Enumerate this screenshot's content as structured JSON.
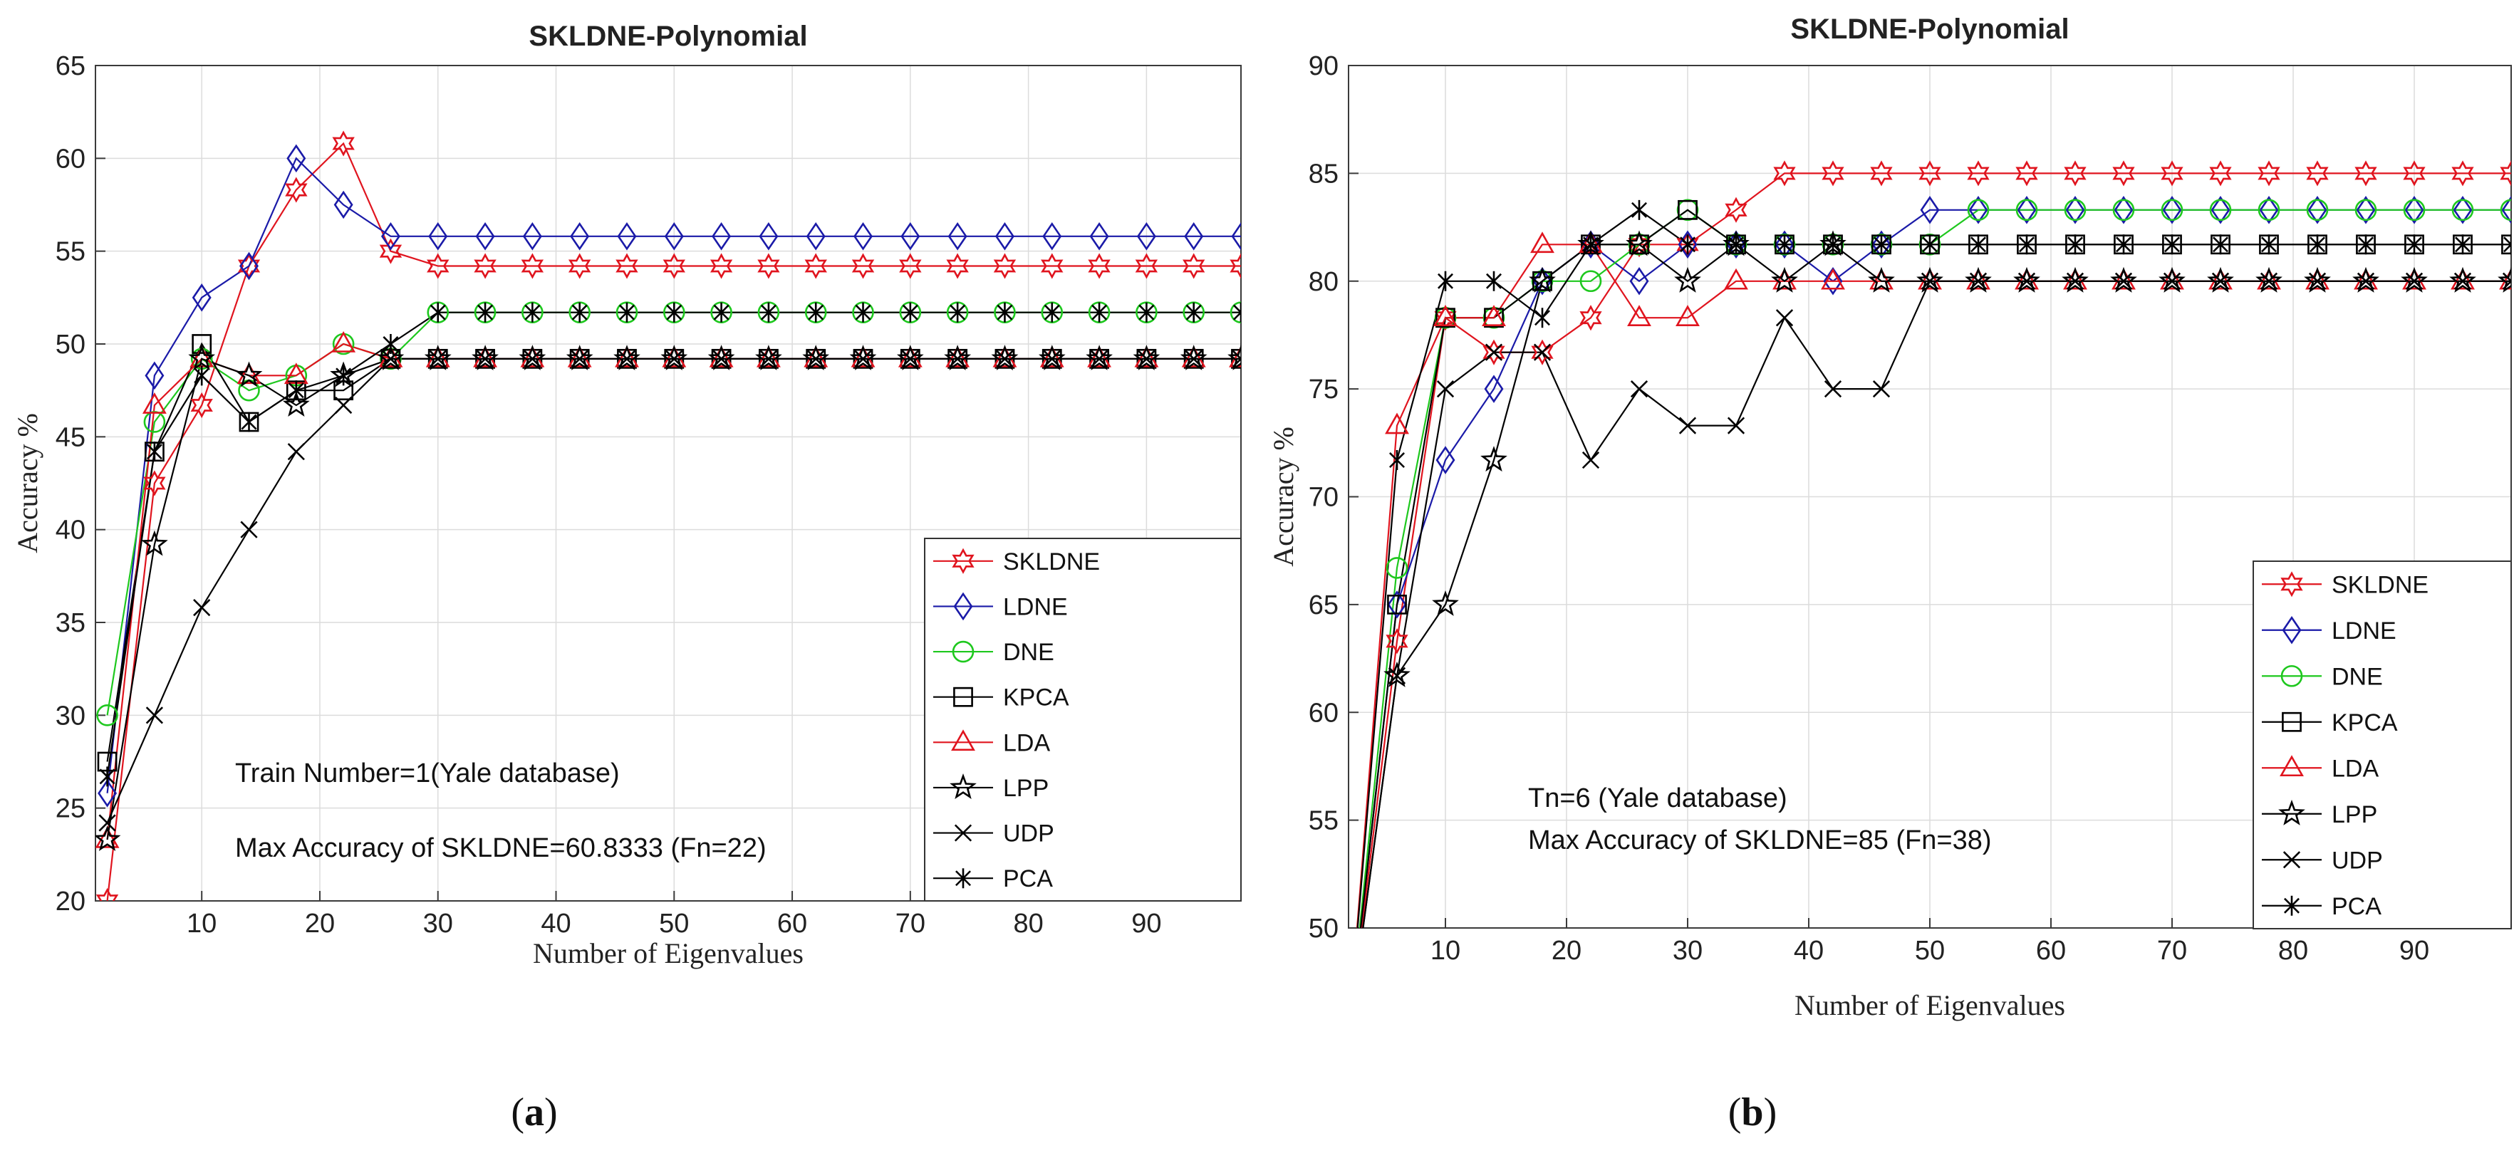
{
  "chart_data": [
    {
      "type": "line",
      "panel_label": "a",
      "title": "SKLDNE-Polynomial",
      "xlabel": "Number of Eigenvalues",
      "ylabel": "Accuracy %",
      "xlim": [
        1,
        98
      ],
      "ylim": [
        20,
        65
      ],
      "xticks": [
        10,
        20,
        30,
        40,
        50,
        60,
        70,
        80,
        90
      ],
      "yticks": [
        20,
        25,
        30,
        35,
        40,
        45,
        50,
        55,
        60,
        65
      ],
      "grid": true,
      "legend_position": "lower-right",
      "annotations": [
        "Train Number=1(Yale database)",
        "Max Accuracy of SKLDNE=60.8333 (Fn=22)"
      ],
      "x": [
        2,
        6,
        10,
        14,
        18,
        22,
        26,
        30,
        34,
        38,
        42,
        46,
        50,
        54,
        58,
        62,
        66,
        70,
        74,
        78,
        82,
        86,
        90,
        94,
        98
      ],
      "series": [
        {
          "name": "SKLDNE",
          "color": "#e0141e",
          "marker": "hexagram",
          "values": [
            20,
            42.5,
            46.7,
            54.2,
            58.3,
            60.8,
            55.0,
            54.2,
            54.2,
            54.2,
            54.2,
            54.2,
            54.2,
            54.2,
            54.2,
            54.2,
            54.2,
            54.2,
            54.2,
            54.2,
            54.2,
            54.2,
            54.2,
            54.2,
            54.2
          ]
        },
        {
          "name": "LDNE",
          "color": "#1a1aa8",
          "marker": "diamond",
          "values": [
            25.8,
            48.3,
            52.5,
            54.2,
            60.0,
            57.5,
            55.8,
            55.8,
            55.8,
            55.8,
            55.8,
            55.8,
            55.8,
            55.8,
            55.8,
            55.8,
            55.8,
            55.8,
            55.8,
            55.8,
            55.8,
            55.8,
            55.8,
            55.8,
            55.8
          ]
        },
        {
          "name": "DNE",
          "color": "#1ec81e",
          "marker": "circle",
          "values": [
            30.0,
            45.8,
            49.2,
            47.5,
            48.3,
            50.0,
            49.2,
            51.7,
            51.7,
            51.7,
            51.7,
            51.7,
            51.7,
            51.7,
            51.7,
            51.7,
            51.7,
            51.7,
            51.7,
            51.7,
            51.7,
            51.7,
            51.7,
            51.7,
            51.7
          ]
        },
        {
          "name": "KPCA",
          "color": "#000000",
          "marker": "square",
          "values": [
            27.5,
            44.2,
            50.0,
            45.8,
            47.5,
            47.5,
            49.2,
            49.2,
            49.2,
            49.2,
            49.2,
            49.2,
            49.2,
            49.2,
            49.2,
            49.2,
            49.2,
            49.2,
            49.2,
            49.2,
            49.2,
            49.2,
            49.2,
            49.2,
            49.2
          ]
        },
        {
          "name": "LDA",
          "color": "#e0141e",
          "marker": "triangle",
          "values": [
            23.3,
            46.7,
            49.2,
            48.3,
            48.3,
            50.0,
            49.2,
            49.2,
            49.2,
            49.2,
            49.2,
            49.2,
            49.2,
            49.2,
            49.2,
            49.2,
            49.2,
            49.2,
            49.2,
            49.2,
            49.2,
            49.2,
            49.2,
            49.2,
            49.2
          ]
        },
        {
          "name": "LPP",
          "color": "#000000",
          "marker": "pentagram",
          "values": [
            23.3,
            39.2,
            49.2,
            48.3,
            46.7,
            48.3,
            49.2,
            49.2,
            49.2,
            49.2,
            49.2,
            49.2,
            49.2,
            49.2,
            49.2,
            49.2,
            49.2,
            49.2,
            49.2,
            49.2,
            49.2,
            49.2,
            49.2,
            49.2,
            49.2
          ]
        },
        {
          "name": "UDP",
          "color": "#000000",
          "marker": "x",
          "values": [
            24.2,
            30.0,
            35.8,
            40.0,
            44.2,
            46.7,
            49.2,
            49.2,
            49.2,
            49.2,
            49.2,
            49.2,
            49.2,
            49.2,
            49.2,
            49.2,
            49.2,
            49.2,
            49.2,
            49.2,
            49.2,
            49.2,
            49.2,
            49.2,
            49.2
          ]
        },
        {
          "name": "PCA",
          "color": "#000000",
          "marker": "asterisk",
          "values": [
            26.7,
            44.2,
            48.3,
            45.8,
            47.5,
            48.3,
            50.0,
            51.7,
            51.7,
            51.7,
            51.7,
            51.7,
            51.7,
            51.7,
            51.7,
            51.7,
            51.7,
            51.7,
            51.7,
            51.7,
            51.7,
            51.7,
            51.7,
            51.7,
            51.7
          ]
        }
      ]
    },
    {
      "type": "line",
      "panel_label": "b",
      "title": "SKLDNE-Polynomial",
      "xlabel": "Number of Eigenvalues",
      "ylabel": "Accuracy %",
      "xlim": [
        2,
        98
      ],
      "ylim": [
        50,
        90
      ],
      "xticks": [
        10,
        20,
        30,
        40,
        50,
        60,
        70,
        80,
        90
      ],
      "yticks": [
        50,
        55,
        60,
        65,
        70,
        75,
        80,
        85,
        90
      ],
      "grid": true,
      "legend_position": "lower-right",
      "annotations": [
        "Tn=6 (Yale database)",
        "Max Accuracy of SKLDNE=85 (Fn=38)"
      ],
      "x": [
        2,
        6,
        10,
        14,
        18,
        22,
        26,
        30,
        34,
        38,
        42,
        46,
        50,
        54,
        58,
        62,
        66,
        70,
        74,
        78,
        82,
        86,
        90,
        94,
        98
      ],
      "series": [
        {
          "name": "SKLDNE",
          "color": "#e0141e",
          "marker": "hexagram",
          "values": [
            45,
            63.3,
            78.3,
            76.7,
            76.7,
            78.3,
            81.7,
            81.7,
            83.3,
            85.0,
            85.0,
            85.0,
            85.0,
            85.0,
            85.0,
            85.0,
            85.0,
            85.0,
            85.0,
            85.0,
            85.0,
            85.0,
            85.0,
            85.0,
            85.0
          ]
        },
        {
          "name": "LDNE",
          "color": "#1a1aa8",
          "marker": "diamond",
          "values": [
            45,
            65.0,
            71.7,
            75.0,
            80.0,
            81.7,
            80.0,
            81.7,
            81.7,
            81.7,
            80.0,
            81.7,
            83.3,
            83.3,
            83.3,
            83.3,
            83.3,
            83.3,
            83.3,
            83.3,
            83.3,
            83.3,
            83.3,
            83.3,
            83.3
          ]
        },
        {
          "name": "DNE",
          "color": "#1ec81e",
          "marker": "circle",
          "values": [
            45,
            66.7,
            78.3,
            78.3,
            80.0,
            80.0,
            81.7,
            83.3,
            81.7,
            81.7,
            81.7,
            81.7,
            81.7,
            83.3,
            83.3,
            83.3,
            83.3,
            83.3,
            83.3,
            83.3,
            83.3,
            83.3,
            83.3,
            83.3,
            83.3
          ]
        },
        {
          "name": "KPCA",
          "color": "#000000",
          "marker": "square",
          "values": [
            45,
            65.0,
            78.3,
            78.3,
            80.0,
            81.7,
            81.7,
            83.3,
            81.7,
            81.7,
            81.7,
            81.7,
            81.7,
            81.7,
            81.7,
            81.7,
            81.7,
            81.7,
            81.7,
            81.7,
            81.7,
            81.7,
            81.7,
            81.7,
            81.7
          ]
        },
        {
          "name": "LDA",
          "color": "#e0141e",
          "marker": "triangle",
          "values": [
            45,
            73.3,
            78.3,
            78.3,
            81.7,
            81.7,
            78.3,
            78.3,
            80.0,
            80.0,
            80.0,
            80.0,
            80.0,
            80.0,
            80.0,
            80.0,
            80.0,
            80.0,
            80.0,
            80.0,
            80.0,
            80.0,
            80.0,
            80.0,
            80.0
          ]
        },
        {
          "name": "LPP",
          "color": "#000000",
          "marker": "pentagram",
          "values": [
            45,
            61.7,
            65.0,
            71.7,
            80.0,
            81.7,
            81.7,
            80.0,
            81.7,
            80.0,
            81.7,
            80.0,
            80.0,
            80.0,
            80.0,
            80.0,
            80.0,
            80.0,
            80.0,
            80.0,
            80.0,
            80.0,
            80.0,
            80.0,
            80.0
          ]
        },
        {
          "name": "UDP",
          "color": "#000000",
          "marker": "x",
          "values": [
            45,
            61.7,
            75.0,
            76.7,
            76.7,
            71.7,
            75.0,
            73.3,
            73.3,
            78.3,
            75.0,
            75.0,
            80.0,
            80.0,
            80.0,
            80.0,
            80.0,
            80.0,
            80.0,
            80.0,
            80.0,
            80.0,
            80.0,
            80.0,
            80.0
          ]
        },
        {
          "name": "PCA",
          "color": "#000000",
          "marker": "asterisk",
          "values": [
            45,
            71.7,
            80.0,
            80.0,
            78.3,
            81.7,
            83.3,
            81.7,
            81.7,
            81.7,
            81.7,
            81.7,
            81.7,
            81.7,
            81.7,
            81.7,
            81.7,
            81.7,
            81.7,
            81.7,
            81.7,
            81.7,
            81.7,
            81.7,
            81.7
          ]
        }
      ]
    }
  ]
}
